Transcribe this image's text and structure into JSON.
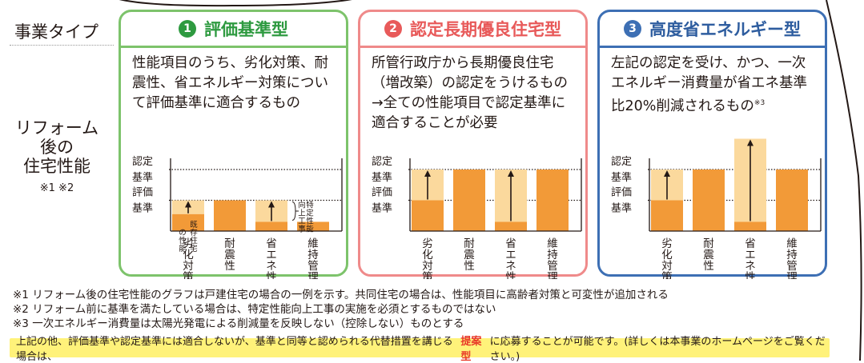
{
  "row_labels": {
    "type": "事業タイプ",
    "perf_line1": "リフォーム",
    "perf_line2": "後の",
    "perf_line3": "住宅性能",
    "perf_notes": "※1 ※2"
  },
  "colors": {
    "green": "#7dc36b",
    "red": "#ef8a8a",
    "blue": "#3d6fb4",
    "bar": "#f29a38",
    "bar_light": "#fbd99d"
  },
  "cards": [
    {
      "num": "1",
      "title": "評価基準型",
      "desc": "性能項目のうち、劣化対策、耐\n震性、省エネルギー対策につい\nて評価基準に適合するもの",
      "desc_sup": ""
    },
    {
      "num": "2",
      "title": "認定長期優良住宅型",
      "desc": "所管行政庁から長期優良住宅\n（増改築）の認定をうけるもの\n→全ての性能項目で認定基準に\n適合することが必要",
      "desc_sup": ""
    },
    {
      "num": "3",
      "title": "高度省エネルギー型",
      "desc": "左記の認定を受け、かつ、一次\nエネルギー消費量が省エネ基準\n比20%削減されるもの",
      "desc_sup": "※3"
    }
  ],
  "chart_data": {
    "type": "bar",
    "y_levels": {
      "認定基準": 2,
      "評価基準": 1
    },
    "y_labels": [
      "認定",
      "基準",
      "評価",
      "基準"
    ],
    "categories": [
      "劣化対策",
      "耐震性",
      "省エネ性",
      "維持管理"
    ],
    "charts": [
      {
        "before": [
          0.55,
          1.0,
          0.3,
          0.3
        ],
        "after": [
          1.0,
          1.0,
          1.0,
          0.3
        ],
        "labels": {
          "existing": "既存住宅の性能",
          "improve": "特定性能向上工事"
        }
      },
      {
        "before": [
          1.0,
          2.0,
          0.3,
          2.0
        ],
        "after": [
          2.0,
          2.0,
          2.0,
          2.0
        ]
      },
      {
        "before": [
          1.0,
          2.0,
          0.3,
          2.0
        ],
        "after": [
          2.0,
          2.0,
          3.0,
          2.0
        ]
      }
    ]
  },
  "notes": [
    "※1 リフォーム後の住宅性能のグラフは戸建住宅の場合の一例を示す。共同住宅の場合は、性能項目に高齢者対策と可変性が追加される",
    "※2 リフォーム前に基準を満たしている場合は、特定性能向上工事の実施を必須とするものではない",
    "※3 一次エネルギー消費量は太陽光発電による削減量を反映しない（控除しない）ものとする"
  ],
  "banner": {
    "pre": "上記の他、評価基準や認定基準には適合しないが、基準と同等と認められる代替措置を講じる場合は、",
    "highlight": "提案型",
    "post": "に応募することが可能です。(詳しくは本事業のホームページをご覧ください。)"
  }
}
